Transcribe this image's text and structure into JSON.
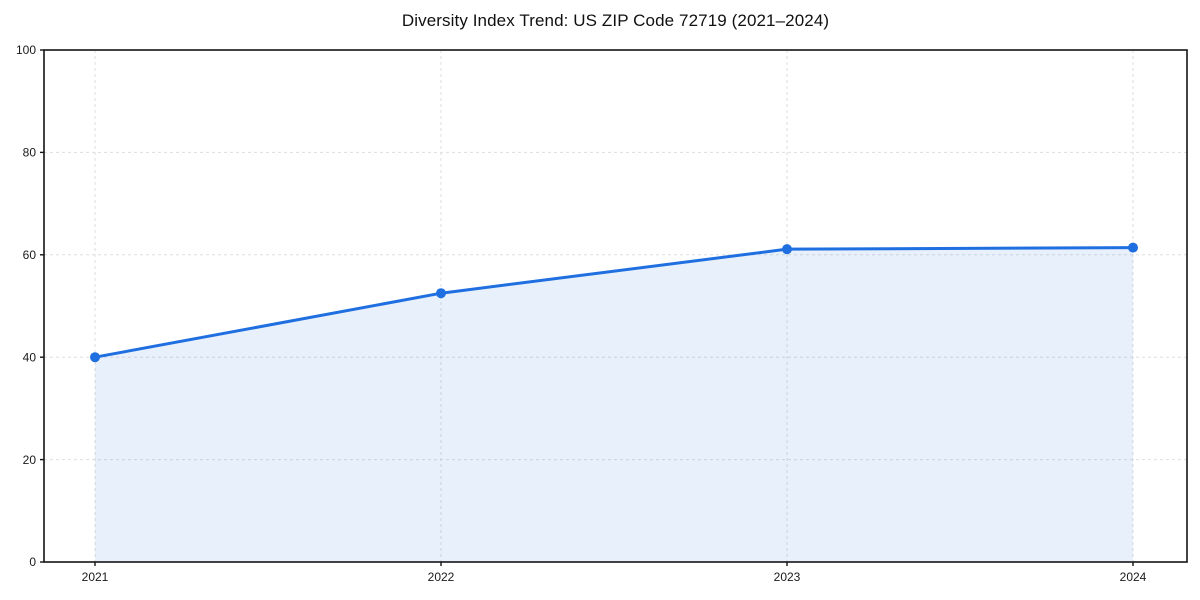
{
  "page": {
    "background": "#ffffff"
  },
  "chart_data": {
    "type": "area",
    "title": "Diversity Index Trend: US ZIP Code 72719 (2021–2024)",
    "x": [
      2021,
      2022,
      2023,
      2024
    ],
    "xtick_labels": [
      "2021",
      "2022",
      "2023",
      "2024"
    ],
    "values": [
      40.0,
      52.5,
      61.1,
      61.4
    ],
    "ylim": [
      0,
      100
    ],
    "yticks": [
      0,
      20,
      40,
      60,
      80,
      100
    ],
    "xlabel": "",
    "ylabel": "",
    "grid": true,
    "grid_style": "dashed",
    "legend_position": "none",
    "marker": "circle",
    "colors": {
      "line": "#1f6fe0",
      "marker": "#1f6fe0",
      "fill": "rgba(31, 112, 224, 0.10)",
      "grid": "#dedede",
      "frame": "#141414",
      "tick_text": "#1a1a1a",
      "title_text": "#111111"
    }
  }
}
